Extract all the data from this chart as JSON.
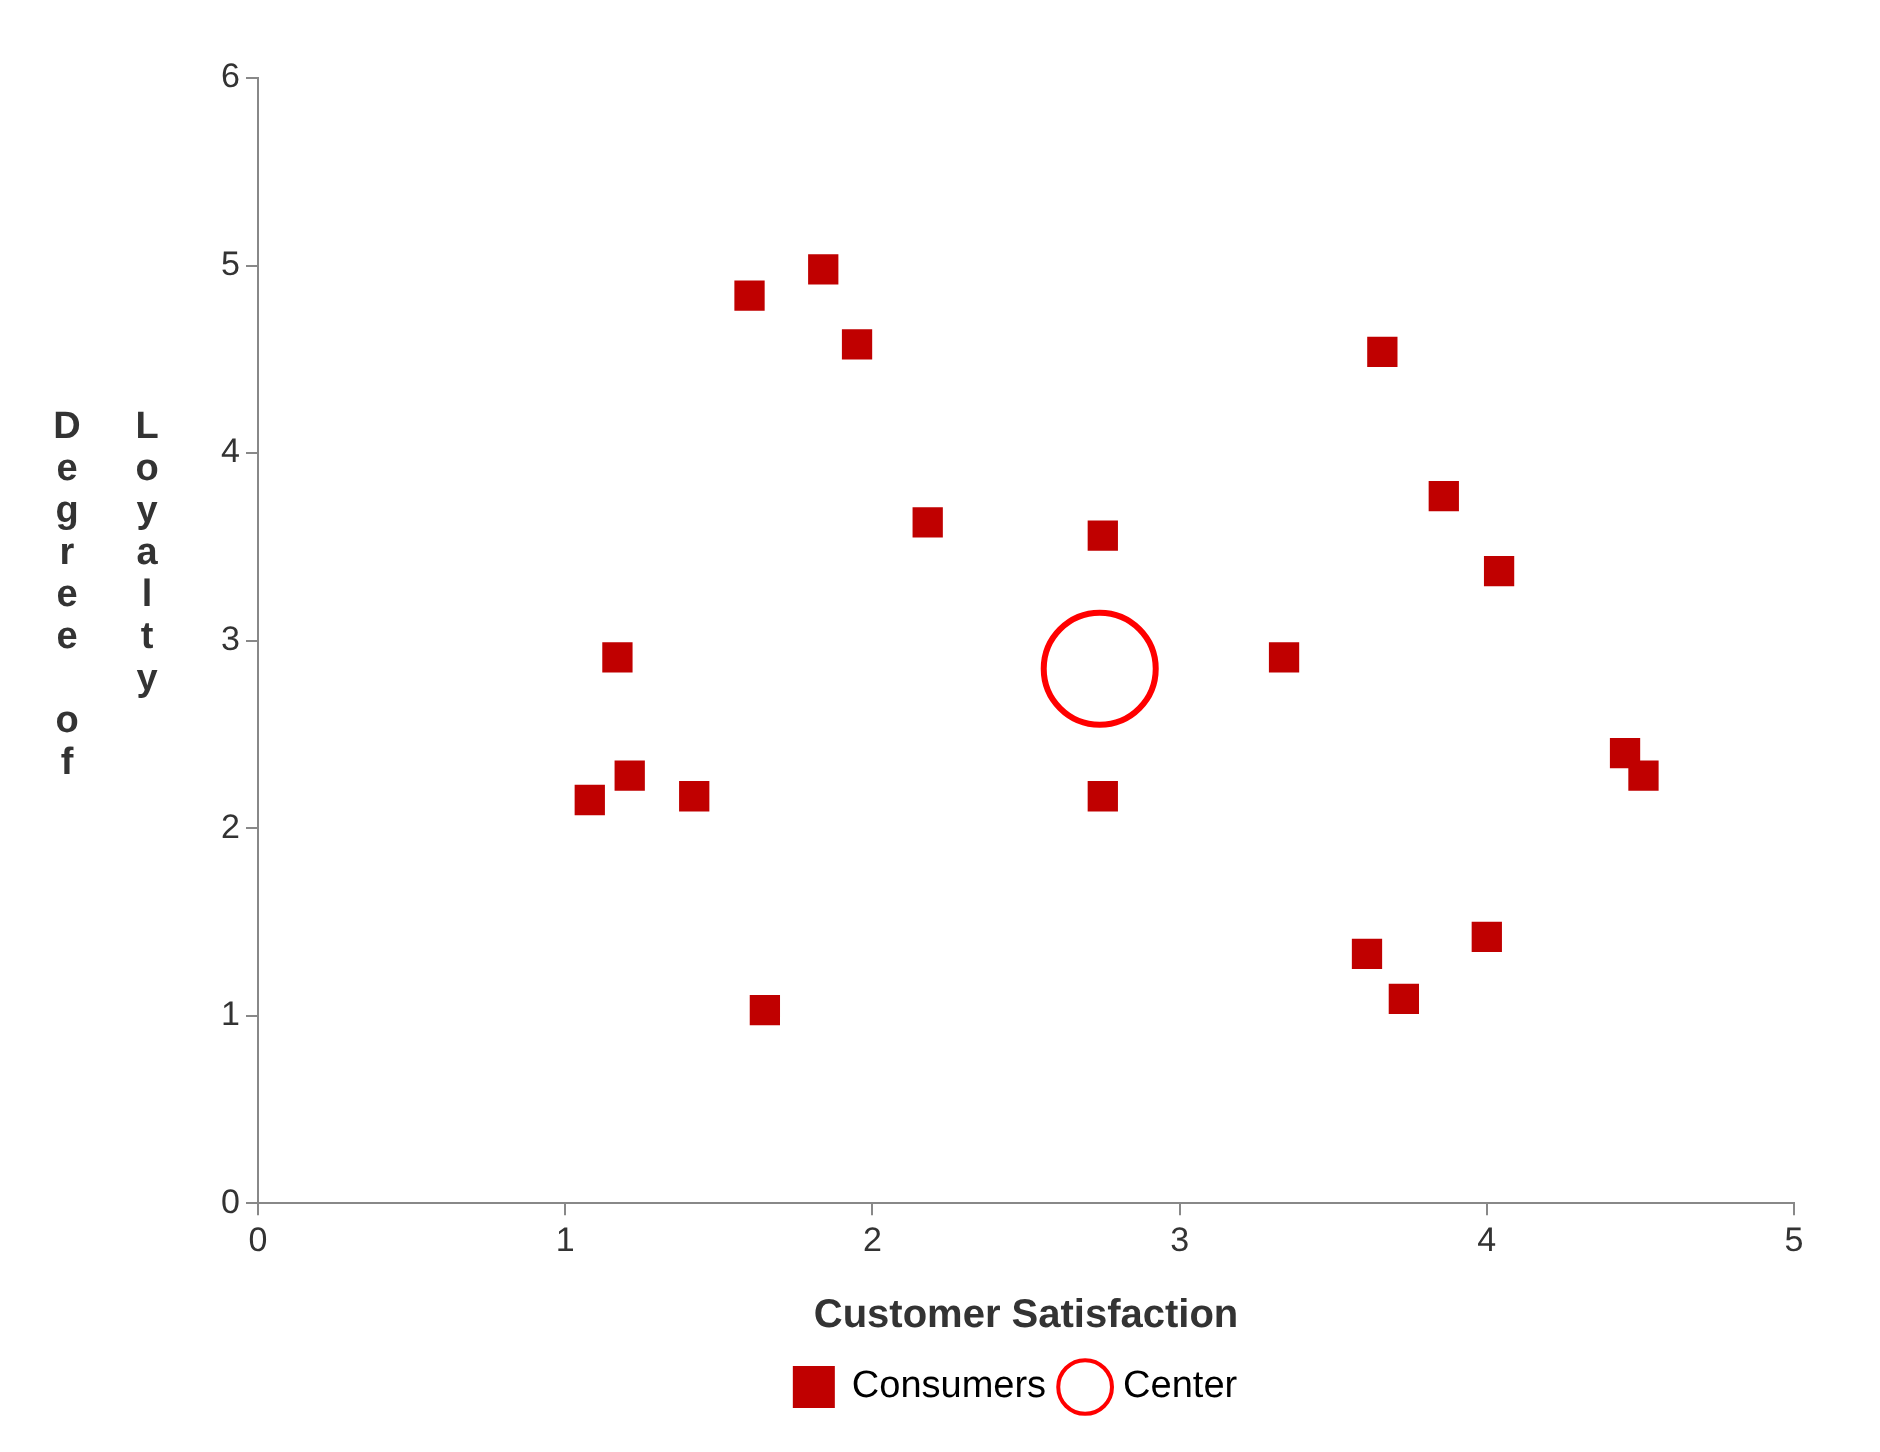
{
  "chart_data": {
    "type": "scatter",
    "xlabel": "Customer Satisfaction",
    "ylabel": "Degree of Loyalty",
    "xlim": [
      0,
      5
    ],
    "xticks": [
      0,
      1,
      2,
      3,
      4,
      5
    ],
    "ylim": [
      0,
      6
    ],
    "yticks": [
      0,
      1,
      2,
      3,
      4,
      5,
      6
    ],
    "grid": false,
    "legend": "bottom",
    "series": [
      {
        "name": "Consumers",
        "color": "#c00000",
        "marker": "square",
        "x": [
          1.08,
          1.21,
          1.17,
          1.42,
          1.65,
          1.6,
          1.84,
          1.95,
          2.18,
          2.75,
          2.75,
          3.34,
          3.66,
          3.86,
          4.04,
          3.61,
          3.73,
          4.0,
          4.45,
          4.51
        ],
        "values": [
          2.15,
          2.28,
          2.91,
          2.17,
          1.03,
          4.84,
          4.98,
          4.58,
          3.63,
          3.56,
          2.17,
          2.91,
          4.54,
          3.77,
          3.37,
          1.33,
          1.09,
          1.42,
          2.4,
          2.28
        ]
      },
      {
        "name": "Center",
        "color": "#ff0000",
        "marker": "circle",
        "x": [
          2.74
        ],
        "values": [
          2.85
        ]
      }
    ]
  }
}
